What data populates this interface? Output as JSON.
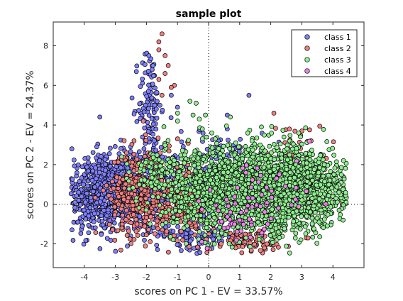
{
  "chart_data": {
    "type": "scatter",
    "title": "sample plot",
    "xlabel": "scores on PC 1 - EV = 33.57%",
    "ylabel": "scores on PC 2 - EV = 24.37%",
    "xlim": [
      -5,
      5
    ],
    "ylim": [
      -3.2,
      9.2
    ],
    "xticks": [
      -4,
      -3,
      -2,
      -1,
      0,
      1,
      2,
      3,
      4
    ],
    "yticks": [
      -2,
      0,
      2,
      4,
      6,
      8
    ],
    "zero_lines": true,
    "grid": false,
    "legend_position": "top-right",
    "series": [
      {
        "name": "class 1",
        "color": "#8080ff",
        "clusters": [
          {
            "cx": -3.5,
            "cy": 0.5,
            "sx": 0.55,
            "sy": 1.0,
            "n": 520
          },
          {
            "cx": -2.2,
            "cy": 0.6,
            "sx": 0.6,
            "sy": 1.1,
            "n": 380
          },
          {
            "cx": -1.9,
            "cy": 5.0,
            "sx": 0.18,
            "sy": 1.5,
            "n": 110
          },
          {
            "cx": 0.3,
            "cy": 1.6,
            "sx": 1.0,
            "sy": 1.0,
            "n": 260
          },
          {
            "cx": -0.3,
            "cy": -1.6,
            "sx": 0.7,
            "sy": 0.4,
            "n": 120
          }
        ],
        "points": [
          [
            -4.3,
            0.1
          ],
          [
            -4.1,
            -0.9
          ],
          [
            -3.5,
            4.4
          ],
          [
            -4.4,
            2.8
          ],
          [
            -3.6,
            2.9
          ],
          [
            -1.2,
            5.5
          ],
          [
            1.3,
            5.5
          ],
          [
            0.6,
            4.5
          ],
          [
            0.6,
            3.8
          ],
          [
            -1.0,
            4.9
          ]
        ]
      },
      {
        "name": "class 2",
        "color": "#f08080",
        "clusters": [
          {
            "cx": -2.3,
            "cy": 0.6,
            "sx": 0.45,
            "sy": 1.1,
            "n": 330
          },
          {
            "cx": -0.7,
            "cy": 0.2,
            "sx": 0.5,
            "sy": 1.0,
            "n": 260
          },
          {
            "cx": 2.8,
            "cy": 2.0,
            "sx": 0.5,
            "sy": 1.0,
            "n": 70
          },
          {
            "cx": 1.2,
            "cy": -1.9,
            "sx": 0.7,
            "sy": 0.35,
            "n": 80
          }
        ],
        "points": [
          [
            -1.5,
            8.6
          ],
          [
            -1.6,
            8.2
          ],
          [
            -1.6,
            7.8
          ],
          [
            -1.4,
            7.5
          ],
          [
            -1.3,
            7.0
          ],
          [
            -1.4,
            6.6
          ],
          [
            -1.1,
            6.0
          ],
          [
            -1.2,
            5.9
          ],
          [
            -1.6,
            6.3
          ],
          [
            -1.5,
            5.5
          ],
          [
            2.1,
            4.6
          ],
          [
            2.6,
            3.8
          ],
          [
            3.0,
            3.7
          ],
          [
            3.3,
            3.2
          ],
          [
            -1.0,
            3.3
          ],
          [
            -2.4,
            3.2
          ],
          [
            -2.1,
            4.2
          ],
          [
            4.4,
            0.6
          ],
          [
            4.3,
            0.0
          ],
          [
            3.2,
            -1.7
          ],
          [
            1.8,
            -2.2
          ]
        ]
      },
      {
        "name": "class 3",
        "color": "#90ee90",
        "clusters": [
          {
            "cx": 1.6,
            "cy": 0.8,
            "sx": 1.15,
            "sy": 1.05,
            "n": 1500
          },
          {
            "cx": 3.1,
            "cy": 0.6,
            "sx": 0.65,
            "sy": 0.9,
            "n": 600
          },
          {
            "cx": -0.2,
            "cy": 0.8,
            "sx": 0.6,
            "sy": 1.0,
            "n": 300
          },
          {
            "cx": -1.8,
            "cy": 1.6,
            "sx": 0.5,
            "sy": 0.7,
            "n": 90
          }
        ],
        "points": [
          [
            -0.6,
            5.2
          ],
          [
            -0.4,
            5.1
          ],
          [
            -1.0,
            4.6
          ],
          [
            -0.5,
            4.5
          ],
          [
            -1.0,
            4.2
          ],
          [
            -0.3,
            4.3
          ],
          [
            -0.1,
            4.5
          ],
          [
            0.7,
            4.4
          ],
          [
            0.1,
            3.6
          ],
          [
            -0.2,
            3.8
          ],
          [
            1.7,
            3.9
          ],
          [
            2.9,
            3.6
          ],
          [
            1.4,
            3.2
          ],
          [
            4.1,
            0.3
          ],
          [
            4.2,
            -0.3
          ]
        ]
      },
      {
        "name": "class 4",
        "color": "#ee82ee",
        "clusters": [
          {
            "cx": 1.0,
            "cy": -0.6,
            "sx": 0.6,
            "sy": 0.7,
            "n": 45
          },
          {
            "cx": 2.3,
            "cy": 0.7,
            "sx": 0.7,
            "sy": 0.9,
            "n": 30
          }
        ],
        "points": [
          [
            0.5,
            -1.2
          ],
          [
            1.0,
            -0.8
          ],
          [
            0.7,
            -0.4
          ],
          [
            1.9,
            -1.0
          ],
          [
            1.2,
            1.6
          ]
        ]
      }
    ]
  }
}
